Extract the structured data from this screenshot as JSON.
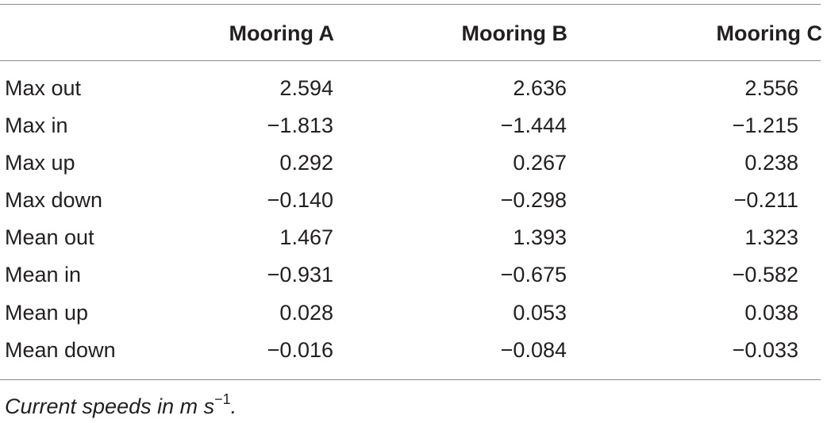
{
  "table": {
    "headers": [
      "",
      "Mooring A",
      "Mooring B",
      "Mooring C"
    ],
    "rows": [
      {
        "label": "Max out",
        "a": "2.594",
        "b": "2.636",
        "c": "2.556"
      },
      {
        "label": "Max in",
        "a": "−1.813",
        "b": "−1.444",
        "c": "−1.215"
      },
      {
        "label": "Max up",
        "a": "0.292",
        "b": "0.267",
        "c": "0.238"
      },
      {
        "label": "Max down",
        "a": "−0.140",
        "b": "−0.298",
        "c": "−0.211"
      },
      {
        "label": "Mean out",
        "a": "1.467",
        "b": "1.393",
        "c": "1.323"
      },
      {
        "label": "Mean in",
        "a": "−0.931",
        "b": "−0.675",
        "c": "−0.582"
      },
      {
        "label": "Mean up",
        "a": "0.028",
        "b": "0.053",
        "c": "0.038"
      },
      {
        "label": "Mean down",
        "a": "−0.016",
        "b": "−0.084",
        "c": "−0.033"
      }
    ]
  },
  "footnote": {
    "text": "Current speeds in m s",
    "superscript": "−1",
    "suffix": "."
  }
}
